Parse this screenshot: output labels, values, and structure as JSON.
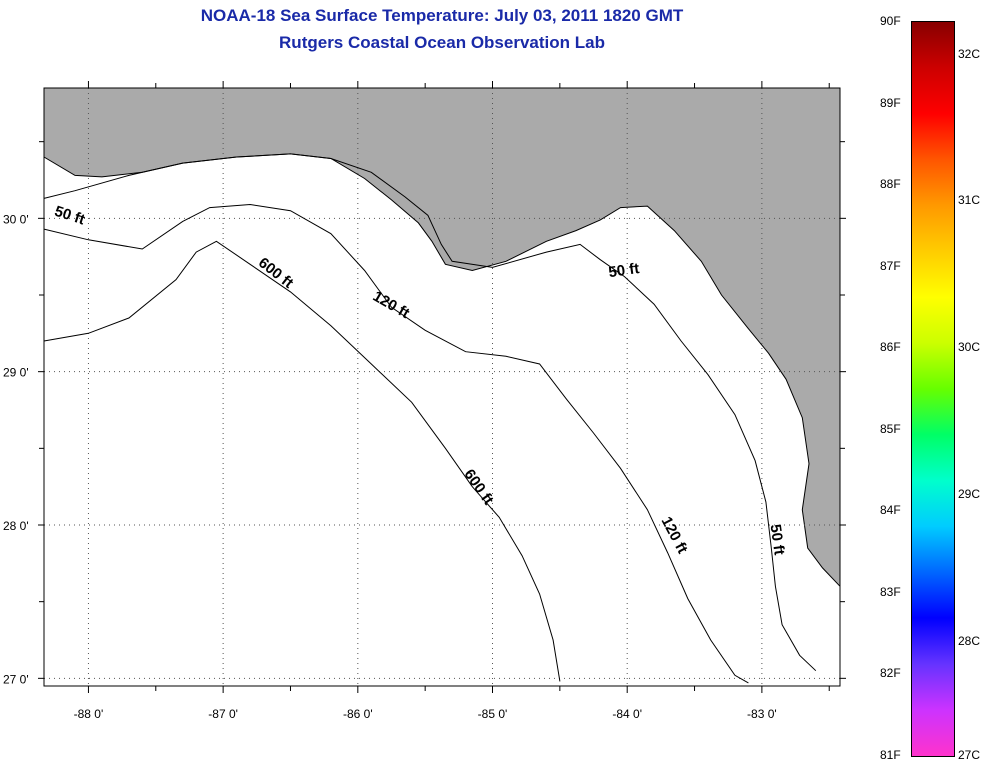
{
  "title": "NOAA-18 Sea Surface Temperature:  July 03, 2011 1820 GMT",
  "subtitle": "Rutgers Coastal Ocean Observation Lab",
  "map": {
    "lon_range": [
      -88.33,
      -82.42
    ],
    "lat_range": [
      26.95,
      30.85
    ],
    "lon_ticks": [
      -88,
      -87,
      -86,
      -85,
      -84,
      -83
    ],
    "lon_tick_labels": [
      "-88 0'",
      "-87 0'",
      "-86 0'",
      "-85 0'",
      "-84 0'",
      "-83 0'"
    ],
    "lat_ticks": [
      30,
      29,
      28,
      27
    ],
    "lat_tick_labels": [
      "30 0'",
      "29 0'",
      "28 0'",
      "27 0'"
    ],
    "land_color": "#aaaaaa",
    "water_color": "#ffffff",
    "grid": "dotted",
    "contour_labels": [
      {
        "text": "50 ft",
        "lon": -88.15,
        "lat": 29.99,
        "angle": 18
      },
      {
        "text": "50 ft",
        "lon": -84.02,
        "lat": 29.63,
        "angle": -8
      },
      {
        "text": "50 ft",
        "lon": -82.92,
        "lat": 27.9,
        "angle": 82
      },
      {
        "text": "120 ft",
        "lon": -85.77,
        "lat": 29.41,
        "angle": 30
      },
      {
        "text": "120 ft",
        "lon": -83.68,
        "lat": 27.92,
        "angle": 62
      },
      {
        "text": "600 ft",
        "lon": -86.63,
        "lat": 29.62,
        "angle": 38
      },
      {
        "text": "600 ft",
        "lon": -85.13,
        "lat": 28.23,
        "angle": 55
      }
    ],
    "contours": [
      {
        "name": "50 ft",
        "points": [
          [
            -88.33,
            30.13
          ],
          [
            -88.1,
            30.18
          ],
          [
            -87.7,
            30.28
          ],
          [
            -87.3,
            30.36
          ],
          [
            -86.9,
            30.4
          ],
          [
            -86.5,
            30.42
          ],
          [
            -86.2,
            30.39
          ],
          [
            -85.9,
            30.3
          ],
          [
            -85.65,
            30.14
          ],
          [
            -85.48,
            30.02
          ],
          [
            -85.38,
            29.83
          ],
          [
            -85.3,
            29.72
          ],
          [
            -85.0,
            29.68
          ],
          [
            -84.6,
            29.78
          ],
          [
            -84.35,
            29.83
          ],
          [
            -84.2,
            29.73
          ],
          [
            -84.02,
            29.62
          ],
          [
            -83.8,
            29.44
          ],
          [
            -83.6,
            29.2
          ],
          [
            -83.4,
            28.98
          ],
          [
            -83.2,
            28.72
          ],
          [
            -83.05,
            28.42
          ],
          [
            -82.97,
            28.15
          ],
          [
            -82.93,
            27.85
          ],
          [
            -82.9,
            27.6
          ],
          [
            -82.85,
            27.35
          ],
          [
            -82.72,
            27.15
          ],
          [
            -82.6,
            27.05
          ]
        ]
      },
      {
        "name": "120 ft",
        "points": [
          [
            -88.33,
            29.93
          ],
          [
            -88.0,
            29.86
          ],
          [
            -87.6,
            29.8
          ],
          [
            -87.3,
            29.98
          ],
          [
            -87.1,
            30.07
          ],
          [
            -86.8,
            30.09
          ],
          [
            -86.5,
            30.05
          ],
          [
            -86.2,
            29.9
          ],
          [
            -85.95,
            29.66
          ],
          [
            -85.75,
            29.42
          ],
          [
            -85.5,
            29.27
          ],
          [
            -85.2,
            29.13
          ],
          [
            -84.9,
            29.1
          ],
          [
            -84.65,
            29.05
          ],
          [
            -84.45,
            28.82
          ],
          [
            -84.25,
            28.6
          ],
          [
            -84.05,
            28.37
          ],
          [
            -83.85,
            28.1
          ],
          [
            -83.7,
            27.82
          ],
          [
            -83.55,
            27.52
          ],
          [
            -83.38,
            27.25
          ],
          [
            -83.2,
            27.02
          ],
          [
            -83.1,
            26.97
          ]
        ]
      },
      {
        "name": "600 ft",
        "points": [
          [
            -88.33,
            29.2
          ],
          [
            -88.0,
            29.25
          ],
          [
            -87.7,
            29.35
          ],
          [
            -87.35,
            29.6
          ],
          [
            -87.2,
            29.78
          ],
          [
            -87.05,
            29.85
          ],
          [
            -86.8,
            29.7
          ],
          [
            -86.5,
            29.52
          ],
          [
            -86.2,
            29.3
          ],
          [
            -85.9,
            29.05
          ],
          [
            -85.6,
            28.8
          ],
          [
            -85.35,
            28.5
          ],
          [
            -85.15,
            28.25
          ],
          [
            -84.95,
            28.05
          ],
          [
            -84.78,
            27.8
          ],
          [
            -84.65,
            27.55
          ],
          [
            -84.55,
            27.25
          ],
          [
            -84.5,
            26.98
          ]
        ]
      }
    ],
    "coastline": [
      [
        -88.33,
        30.4
      ],
      [
        -88.1,
        30.28
      ],
      [
        -87.9,
        30.27
      ],
      [
        -87.6,
        30.3
      ],
      [
        -87.3,
        30.36
      ],
      [
        -86.9,
        30.4
      ],
      [
        -86.5,
        30.42
      ],
      [
        -86.2,
        30.39
      ],
      [
        -85.95,
        30.26
      ],
      [
        -85.75,
        30.12
      ],
      [
        -85.55,
        29.97
      ],
      [
        -85.45,
        29.85
      ],
      [
        -85.35,
        29.7
      ],
      [
        -85.15,
        29.66
      ],
      [
        -84.9,
        29.72
      ],
      [
        -84.6,
        29.85
      ],
      [
        -84.38,
        29.92
      ],
      [
        -84.2,
        29.99
      ],
      [
        -84.05,
        30.07
      ],
      [
        -83.85,
        30.08
      ],
      [
        -83.65,
        29.92
      ],
      [
        -83.45,
        29.72
      ],
      [
        -83.3,
        29.5
      ],
      [
        -83.1,
        29.28
      ],
      [
        -82.95,
        29.12
      ],
      [
        -82.82,
        28.95
      ],
      [
        -82.7,
        28.7
      ],
      [
        -82.65,
        28.4
      ],
      [
        -82.7,
        28.1
      ],
      [
        -82.66,
        27.85
      ],
      [
        -82.55,
        27.72
      ],
      [
        -82.42,
        27.6
      ]
    ]
  },
  "colorbar": {
    "f_labels": [
      "90F",
      "89F",
      "88F",
      "87F",
      "86F",
      "85F",
      "84F",
      "83F",
      "82F",
      "81F"
    ],
    "c_labels": [
      "32C",
      "31C",
      "30C",
      "29C",
      "28C",
      "27C"
    ],
    "f_min": 81,
    "f_max": 90,
    "colors": [
      "#ff33cc",
      "#cc33ff",
      "#6633ff",
      "#0000ff",
      "#0066ff",
      "#00ccff",
      "#00ffcc",
      "#00ff66",
      "#66ff00",
      "#ccff00",
      "#ffff00",
      "#ffcc00",
      "#ff9900",
      "#ff5500",
      "#ff0000",
      "#cc0000",
      "#880000"
    ]
  }
}
